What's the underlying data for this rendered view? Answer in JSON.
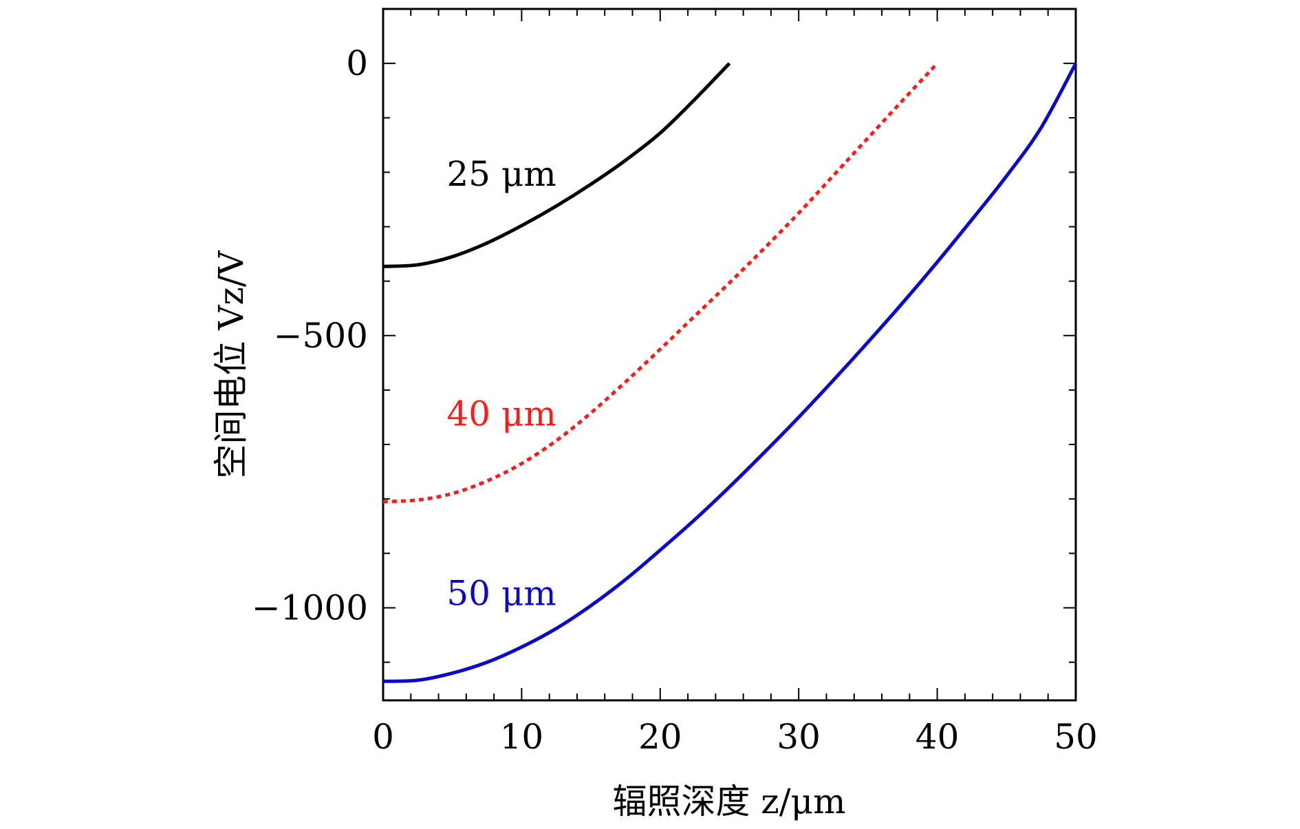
{
  "chart_data": {
    "type": "line",
    "title": "",
    "xlabel": "辐照深度 z/μm",
    "ylabel": "空间电位 Vz/V",
    "xlim": [
      0,
      50
    ],
    "ylim": [
      -1170,
      100
    ],
    "xticks": [
      0,
      10,
      20,
      30,
      40,
      50
    ],
    "xtick_labels": [
      "0",
      "10",
      "20",
      "30",
      "40",
      "50"
    ],
    "yticks": [
      0,
      -500,
      -1000
    ],
    "ytick_labels": [
      "0",
      "−500",
      "−1000"
    ],
    "grid": false,
    "legend": "inline labels",
    "series": [
      {
        "name": "25 μm",
        "label": "25 μm",
        "color": "#000000",
        "dash": "solid",
        "label_x": 12.5,
        "label_y": -225,
        "x": [
          0,
          2.5,
          5,
          7.5,
          10,
          12.5,
          15,
          17.5,
          20,
          22.5,
          25
        ],
        "y": [
          -373,
          -370,
          -355,
          -330,
          -298,
          -262,
          -222,
          -178,
          -128,
          -66,
          0
        ]
      },
      {
        "name": "40 μm",
        "label": "40 μm",
        "color": "#ff1a1a",
        "dash": "dotted",
        "label_x": 12.5,
        "label_y": -665,
        "x": [
          0,
          2.5,
          5,
          7.5,
          10,
          12.5,
          15,
          17.5,
          20,
          22.5,
          25,
          27.5,
          30,
          32.5,
          35,
          37.5,
          40
        ],
        "y": [
          -805,
          -802,
          -790,
          -767,
          -735,
          -693,
          -642,
          -585,
          -525,
          -464,
          -403,
          -340,
          -275,
          -206,
          -137,
          -68,
          0
        ]
      },
      {
        "name": "50 μm",
        "label": "50 μm",
        "color": "#0a0acc",
        "dash": "solid",
        "label_x": 12.5,
        "label_y": -995,
        "x": [
          0,
          2.5,
          5,
          7.5,
          10,
          12.5,
          15,
          17.5,
          20,
          22.5,
          25,
          27.5,
          30,
          32.5,
          35,
          37.5,
          40,
          42.5,
          45,
          47.5,
          50
        ],
        "y": [
          -1135,
          -1133,
          -1120,
          -1100,
          -1072,
          -1038,
          -996,
          -948,
          -894,
          -838,
          -778,
          -715,
          -650,
          -582,
          -512,
          -440,
          -365,
          -287,
          -207,
          -118,
          0
        ]
      }
    ]
  }
}
